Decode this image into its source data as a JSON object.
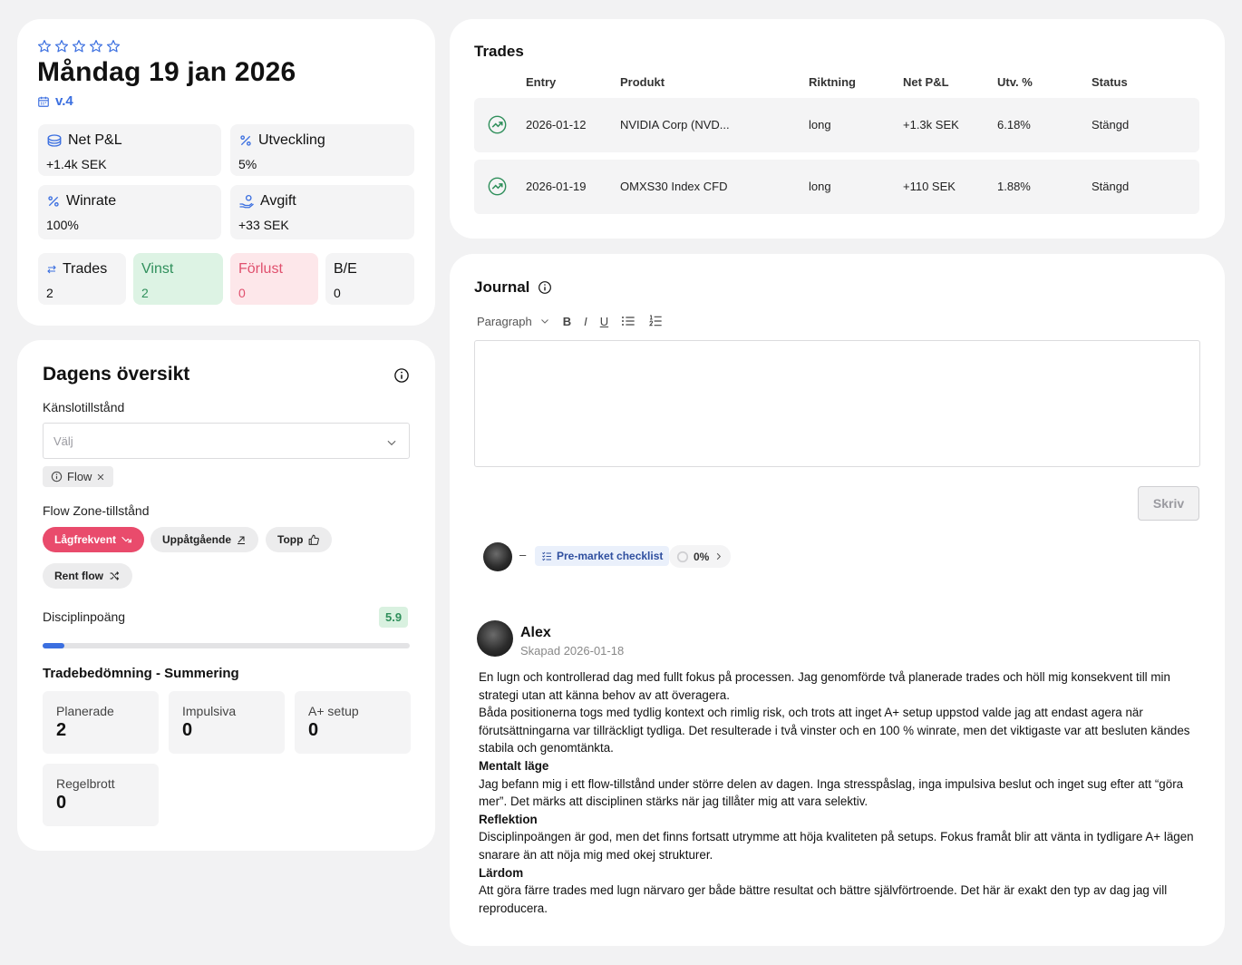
{
  "day": {
    "rating_stars": 5,
    "title": "Måndag 19 jan 2026",
    "version": "v.4",
    "stats": {
      "net_pnl_label": "Net P&L",
      "net_pnl_value": "+1.4k SEK",
      "utveckling_label": "Utveckling",
      "utveckling_value": "5%",
      "winrate_label": "Winrate",
      "winrate_value": "100%",
      "avgift_label": "Avgift",
      "avgift_value": "+33 SEK",
      "trades_label": "Trades",
      "trades_value": "2",
      "vinst_label": "Vinst",
      "vinst_value": "2",
      "forlust_label": "Förlust",
      "forlust_value": "0",
      "be_label": "B/E",
      "be_value": "0"
    }
  },
  "overview": {
    "title": "Dagens översikt",
    "feeling_label": "Känslotillstånd",
    "feeling_placeholder": "Välj",
    "feeling_chip": "Flow",
    "flow_zone_label": "Flow Zone-tillstånd",
    "flow_options": [
      "Lågfrekvent",
      "Uppåtgående",
      "Topp",
      "Rent flow"
    ],
    "discipline_label": "Disciplinpoäng",
    "discipline_score": "5.9",
    "discipline_progress": 0.06,
    "trade_rating_title": "Tradebedömning - Summering",
    "trade_rating": [
      {
        "label": "Planerade",
        "value": "2"
      },
      {
        "label": "Impulsiva",
        "value": "0"
      },
      {
        "label": "A+ setup",
        "value": "0"
      },
      {
        "label": "Regelbrott",
        "value": "0"
      }
    ]
  },
  "trades": {
    "title": "Trades",
    "columns": [
      "Entry",
      "Produkt",
      "Riktning",
      "Net P&L",
      "Utv. %",
      "Status"
    ],
    "rows": [
      {
        "entry": "2026-01-12",
        "produkt": "NVIDIA Corp (NVD...",
        "riktning": "long",
        "net_pnl": "+1.3k SEK",
        "utv": "6.18%",
        "status": "Stängd"
      },
      {
        "entry": "2026-01-19",
        "produkt": "OMXS30 Index CFD",
        "riktning": "long",
        "net_pnl": "+110 SEK",
        "utv": "1.88%",
        "status": "Stängd"
      }
    ]
  },
  "journal": {
    "title": "Journal",
    "toolbar": {
      "block_type": "Paragraph",
      "bold": "B",
      "italic": "I",
      "underline": "U"
    },
    "write_button": "Skriv",
    "entry_dash": "–",
    "checklist_label": "Pre-market checklist",
    "checklist_progress": "0%",
    "author": "Alex",
    "created": "Skapad 2026-01-18",
    "paragraphs": {
      "p1": "En lugn och kontrollerad dag med fullt fokus på processen. Jag genomförde två planerade trades och höll mig konsekvent till min strategi utan att känna behov av att överagera.",
      "p2": "Båda positionerna togs med tydlig kontext och rimlig risk, och trots att inget A+ setup uppstod valde jag att endast agera när förutsättningarna var tillräckligt tydliga. Det resulterade i två vinster och en 100 % winrate, men det viktigaste var att besluten kändes stabila och genomtänkta.",
      "h1": "Mentalt läge",
      "p3": "Jag befann mig i ett flow-tillstånd under större delen av dagen. Inga stresspåslag, inga impulsiva beslut och inget sug efter att “göra mer”. Det märks att disciplinen stärks när jag tillåter mig att vara selektiv.",
      "h2": "Reflektion",
      "p4": "Disciplinpoängen är god, men det finns fortsatt utrymme att höja kvaliteten på setups. Fokus framåt blir att vänta in tydligare A+ lägen snarare än att nöja mig med okej strukturer.",
      "h3": "Lärdom",
      "p5": "Att göra färre trades med lugn närvaro ger både bättre resultat och bättre självförtroende. Det här är exakt den typ av dag jag vill reproducera."
    }
  },
  "colors": {
    "accent_blue": "#3b6fe0",
    "win_green": "#2f8f5b",
    "loss_red": "#e0506e",
    "active_pill": "#e94b6c"
  }
}
